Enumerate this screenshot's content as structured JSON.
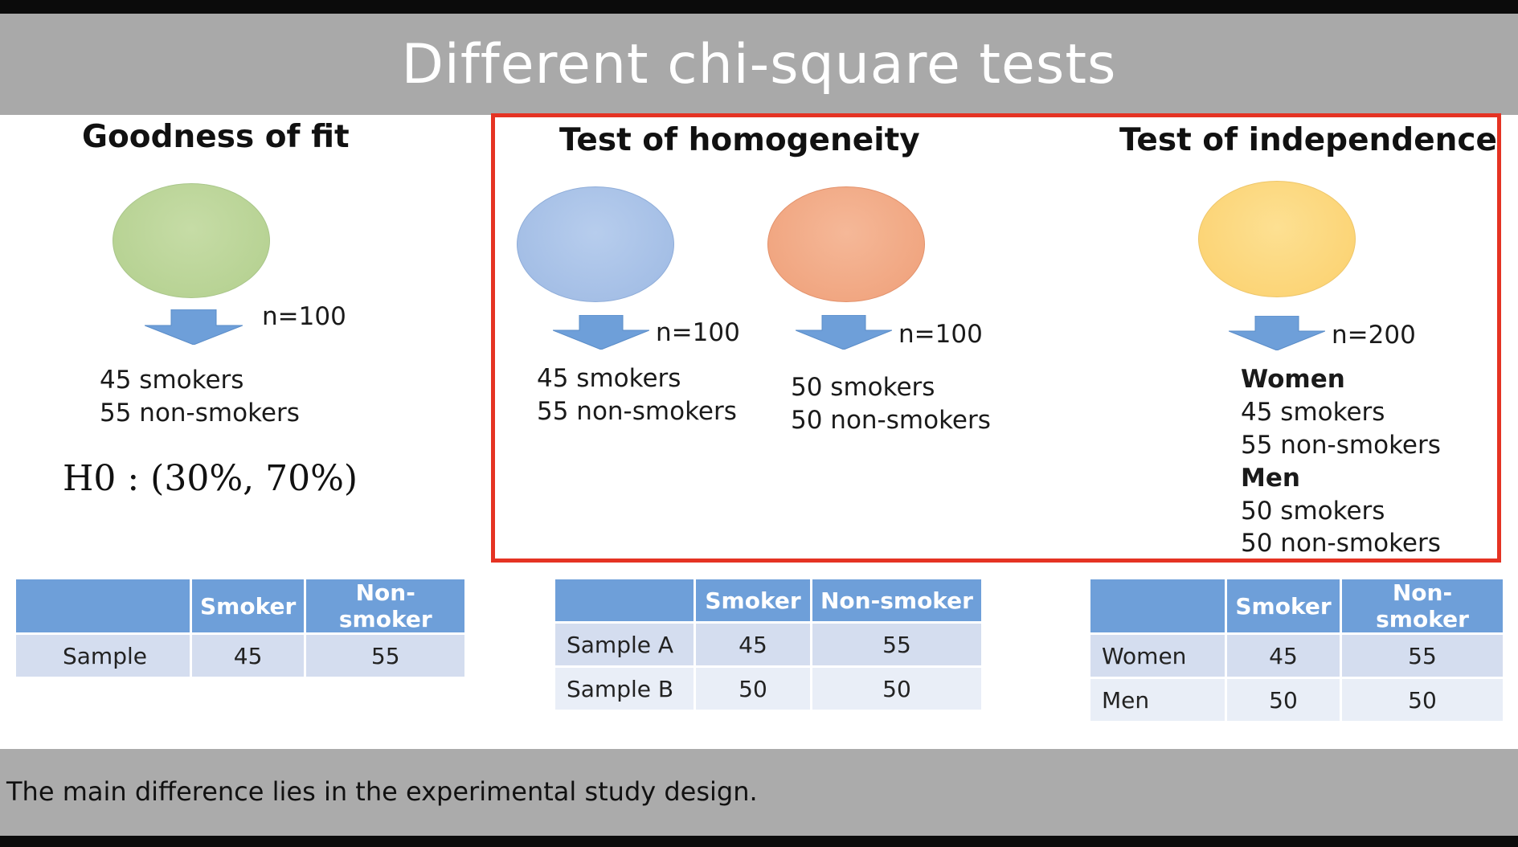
{
  "title": "Different chi-square tests",
  "colors": {
    "circle_goodness": "#bcd59a",
    "circle_homog_a": "#a9c3e8",
    "circle_homog_b": "#f2ab87",
    "circle_indep": "#fcd77e",
    "arrow": "#6e9fd9",
    "highlight_box": "#e53323",
    "table_header": "#6e9fd9"
  },
  "goodness": {
    "heading": "Goodness of fit",
    "n": "n=100",
    "lines": [
      "45 smokers",
      "55 non-smokers"
    ],
    "hypothesis": "H0 : (30%, 70%)",
    "table": {
      "headers": [
        "",
        "Smoker",
        "Non-smoker"
      ],
      "rows": [
        [
          "Sample",
          "45",
          "55"
        ]
      ]
    }
  },
  "homogeneity": {
    "heading": "Test of homogeneity",
    "groups": [
      {
        "n": "n=100",
        "lines": [
          "45 smokers",
          "55 non-smokers"
        ]
      },
      {
        "n": "n=100",
        "lines": [
          "50 smokers",
          "50 non-smokers"
        ]
      }
    ],
    "table": {
      "headers": [
        "",
        "Smoker",
        "Non-smoker"
      ],
      "rows": [
        [
          "Sample A",
          "45",
          "55"
        ],
        [
          "Sample B",
          "50",
          "50"
        ]
      ]
    }
  },
  "independence": {
    "heading": "Test of independence",
    "n": "n=200",
    "women_label": "Women",
    "women_lines": [
      "45 smokers",
      "55 non-smokers"
    ],
    "men_label": "Men",
    "men_lines": [
      "50 smokers",
      "50 non-smokers"
    ],
    "table": {
      "headers": [
        "",
        "Smoker",
        "Non-smoker"
      ],
      "rows": [
        [
          "Women",
          "45",
          "55"
        ],
        [
          "Men",
          "50",
          "50"
        ]
      ]
    }
  },
  "footer": "The main difference lies in the experimental study design."
}
